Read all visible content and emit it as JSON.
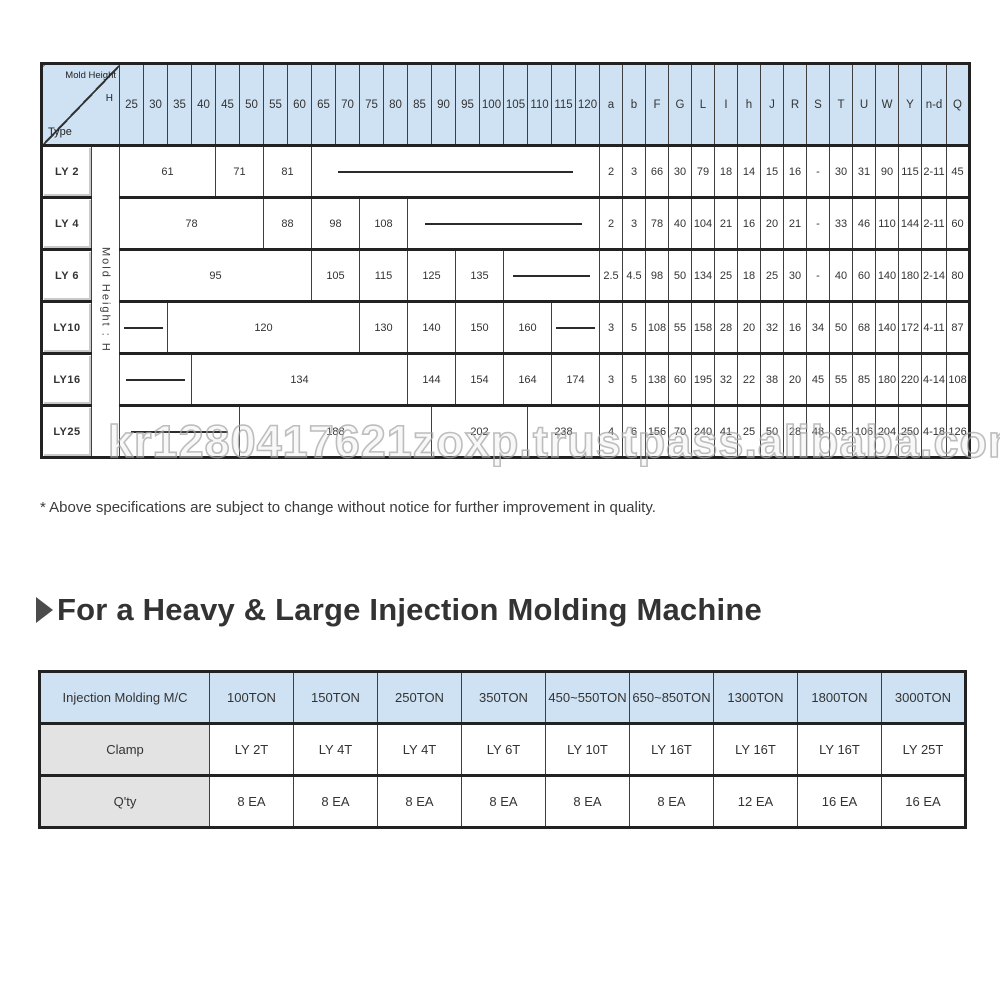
{
  "spec_table": {
    "corner": {
      "top_label": "Mold Height",
      "top_sub": "H",
      "bottom_label": "Type"
    },
    "side_label": "Mold Height : H",
    "height_columns": [
      "25",
      "30",
      "35",
      "40",
      "45",
      "50",
      "55",
      "60",
      "65",
      "70",
      "75",
      "80",
      "85",
      "90",
      "95",
      "100",
      "105",
      "110",
      "115",
      "120"
    ],
    "letter_columns": [
      "a",
      "b",
      "F",
      "G",
      "L",
      "I",
      "h",
      "J",
      "R",
      "S",
      "T",
      "U",
      "W",
      "Y",
      "n-d",
      "Q"
    ],
    "rows": [
      {
        "type": "LY 2",
        "spans": [
          {
            "label": "61",
            "cols": 4
          },
          {
            "label": "71",
            "cols": 2
          },
          {
            "label": "81",
            "cols": 2
          },
          {
            "dash": true,
            "cols": 12
          }
        ],
        "values": [
          "2",
          "3",
          "66",
          "30",
          "79",
          "18",
          "14",
          "15",
          "16",
          "-",
          "30",
          "31",
          "90",
          "115",
          "2-11",
          "45"
        ]
      },
      {
        "type": "LY 4",
        "spans": [
          {
            "label": "78",
            "cols": 6
          },
          {
            "label": "88",
            "cols": 2
          },
          {
            "label": "98",
            "cols": 2
          },
          {
            "label": "108",
            "cols": 2
          },
          {
            "dash": true,
            "cols": 8
          }
        ],
        "values": [
          "2",
          "3",
          "78",
          "40",
          "104",
          "21",
          "16",
          "20",
          "21",
          "-",
          "33",
          "46",
          "110",
          "144",
          "2-11",
          "60"
        ]
      },
      {
        "type": "LY 6",
        "spans": [
          {
            "label": "95",
            "cols": 8
          },
          {
            "label": "105",
            "cols": 2
          },
          {
            "label": "115",
            "cols": 2
          },
          {
            "label": "125",
            "cols": 2
          },
          {
            "label": "135",
            "cols": 2
          },
          {
            "dash": true,
            "cols": 4
          }
        ],
        "values": [
          "2.5",
          "4.5",
          "98",
          "50",
          "134",
          "25",
          "18",
          "25",
          "30",
          "-",
          "40",
          "60",
          "140",
          "180",
          "2-14",
          "80"
        ]
      },
      {
        "type": "LY10",
        "spans": [
          {
            "dash": true,
            "cols": 2
          },
          {
            "label": "120",
            "cols": 8
          },
          {
            "label": "130",
            "cols": 2
          },
          {
            "label": "140",
            "cols": 2
          },
          {
            "label": "150",
            "cols": 2
          },
          {
            "label": "160",
            "cols": 2
          },
          {
            "dash": true,
            "cols": 2
          }
        ],
        "values": [
          "3",
          "5",
          "108",
          "55",
          "158",
          "28",
          "20",
          "32",
          "16",
          "34",
          "50",
          "68",
          "140",
          "172",
          "4-11",
          "87"
        ]
      },
      {
        "type": "LY16",
        "spans": [
          {
            "dash": true,
            "cols": 3
          },
          {
            "label": "134",
            "cols": 9
          },
          {
            "label": "144",
            "cols": 2
          },
          {
            "label": "154",
            "cols": 2
          },
          {
            "label": "164",
            "cols": 2
          },
          {
            "label": "174",
            "cols": 2
          }
        ],
        "values": [
          "3",
          "5",
          "138",
          "60",
          "195",
          "32",
          "22",
          "38",
          "20",
          "45",
          "55",
          "85",
          "180",
          "220",
          "4-14",
          "108"
        ]
      },
      {
        "type": "LY25",
        "spans": [
          {
            "dash": true,
            "cols": 5
          },
          {
            "label": "188",
            "cols": 8
          },
          {
            "label": "202",
            "cols": 4
          },
          {
            "label": "238",
            "cols": 3
          }
        ],
        "values": [
          "4",
          "6",
          "156",
          "70",
          "240",
          "41",
          "25",
          "50",
          "28",
          "48",
          "65",
          "106",
          "204",
          "250",
          "4-18",
          "126"
        ]
      }
    ]
  },
  "note": "* Above specifications are subject to change without notice for further improvement in quality.",
  "watermark": "kr1280417621zoxp.trustpass.alibaba.com",
  "heading": "For a Heavy & Large Injection Molding Machine",
  "machine_table": {
    "header": [
      "Injection Molding M/C",
      "100TON",
      "150TON",
      "250TON",
      "350TON",
      "450~550TON",
      "650~850TON",
      "1300TON",
      "1800TON",
      "3000TON"
    ],
    "rows": [
      {
        "label": "Clamp",
        "values": [
          "LY 2T",
          "LY 4T",
          "LY 4T",
          "LY 6T",
          "LY 10T",
          "LY 16T",
          "LY 16T",
          "LY 16T",
          "LY 25T"
        ]
      },
      {
        "label": "Q'ty",
        "values": [
          "8 EA",
          "8 EA",
          "8 EA",
          "8 EA",
          "8 EA",
          "8 EA",
          "12 EA",
          "16 EA",
          "16 EA"
        ]
      }
    ]
  },
  "colors": {
    "header_blue": "#cfe2f3",
    "label_gray": "#e3e3e3",
    "border": "#222222"
  }
}
